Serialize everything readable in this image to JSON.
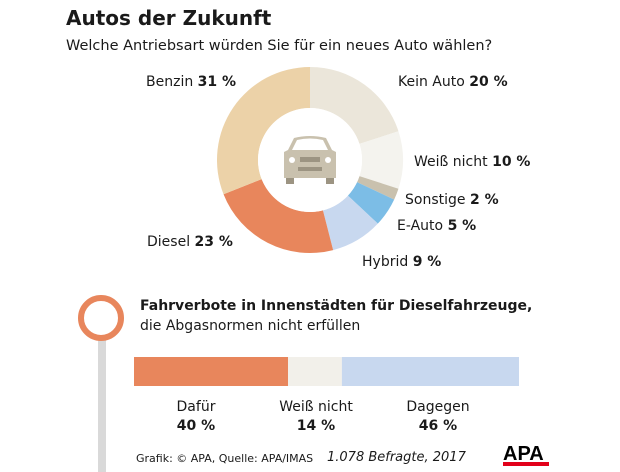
{
  "title": "Autos der Zukunft",
  "subtitle": "Welche Antriebsart würden Sie für ein neues Auto wählen?",
  "chart_data": [
    {
      "type": "pie",
      "variant": "donut",
      "start": "top, clockwise",
      "center_icon": "car-icon",
      "slices": [
        {
          "label": "Kein Auto",
          "value": 20,
          "display": "20 %",
          "color": "#ebe6da"
        },
        {
          "label": "Weiß nicht",
          "value": 10,
          "display": "10 %",
          "color": "#f4f3ee"
        },
        {
          "label": "Sonstige",
          "value": 2,
          "display": "2 %",
          "color": "#c9c1ae"
        },
        {
          "label": "E-Auto",
          "value": 5,
          "display": "5 %",
          "color": "#7cbde6"
        },
        {
          "label": "Hybrid",
          "value": 9,
          "display": "9 %",
          "color": "#c8d8ef"
        },
        {
          "label": "Diesel",
          "value": 23,
          "display": "23 %",
          "color": "#e8865c"
        },
        {
          "label": "Benzin",
          "value": 31,
          "display": "31 %",
          "color": "#ecd2a8"
        }
      ]
    },
    {
      "type": "bar",
      "variant": "stacked-horizontal",
      "title": "Fahrverbote in Innenstädten für Dieselfahrzeuge,",
      "subtitle": "die Abgasnormen nicht erfüllen",
      "segments": [
        {
          "label": "Dafür",
          "value": 40,
          "display": "40 %",
          "color": "#e8865c"
        },
        {
          "label": "Weiß nicht",
          "value": 14,
          "display": "14 %",
          "color": "#f2f0ea"
        },
        {
          "label": "Dagegen",
          "value": 46,
          "display": "46 %",
          "color": "#c8d8ef"
        }
      ]
    }
  ],
  "footer": {
    "source": "Grafik: © APA, Quelle: APA/IMAS",
    "respondents": "1.078 Befragte, 2017",
    "logo": "APA"
  }
}
